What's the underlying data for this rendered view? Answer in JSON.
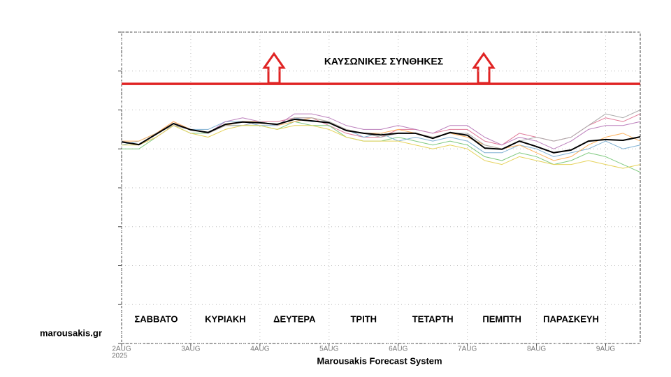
{
  "chart_data": {
    "type": "line",
    "footer": "Marousakis Forecast System",
    "brand": "marousakis.gr",
    "year_label": "2025",
    "xlim": [
      0,
      7.5
    ],
    "xticks": [
      {
        "value": 0,
        "label": "2AUG"
      },
      {
        "value": 1,
        "label": "3AUG"
      },
      {
        "value": 2,
        "label": "4AUG"
      },
      {
        "value": 3,
        "label": "5AUG"
      },
      {
        "value": 4,
        "label": "6AUG"
      },
      {
        "value": 5,
        "label": "7AUG"
      },
      {
        "value": 6,
        "label": "8AUG"
      },
      {
        "value": 7,
        "label": "9AUG"
      }
    ],
    "ylim": [
      0,
      8
    ],
    "yticks": [
      0,
      1,
      2,
      3,
      4,
      5,
      6,
      7,
      8
    ],
    "grid": true,
    "day_labels": [
      "ΣΑΒΒΑΤΟ",
      "ΚΥΡΙΑΚΗ",
      "ΔΕΥΤΕΡΑ",
      "ΤΡΙΤΗ",
      "ΤΕΤΑΡΤΗ",
      "ΠΕΜΠΤΗ",
      "ΠΑΡΑΣΚΕΥΗ"
    ],
    "threshold": {
      "value": 6.67,
      "label": "ΚΑΥΣΩΝΙΚΕΣ ΣΥΝΘΗΚΕΣ",
      "color": "#e02424"
    },
    "x": [
      0,
      0.25,
      0.5,
      0.75,
      1,
      1.25,
      1.5,
      1.75,
      2,
      2.25,
      2.5,
      2.75,
      3,
      3.25,
      3.5,
      3.75,
      4,
      4.25,
      4.5,
      4.75,
      5,
      5.25,
      5.5,
      5.75,
      6,
      6.25,
      6.5,
      6.75,
      7,
      7.25,
      7.5
    ],
    "members": [
      {
        "color": "#e07b9a",
        "values": [
          5.2,
          5.1,
          5.4,
          5.7,
          5.5,
          5.4,
          5.6,
          5.7,
          5.7,
          5.7,
          5.8,
          5.8,
          5.6,
          5.4,
          5.3,
          5.3,
          5.5,
          5.5,
          5.4,
          5.5,
          5.5,
          5.2,
          5.1,
          5.4,
          5.3,
          5.2,
          5.3,
          5.6,
          5.8,
          5.7,
          5.9
        ]
      },
      {
        "color": "#7fc97f",
        "values": [
          5.0,
          5.0,
          5.3,
          5.6,
          5.4,
          5.4,
          5.6,
          5.6,
          5.6,
          5.5,
          5.7,
          5.6,
          5.6,
          5.3,
          5.2,
          5.2,
          5.3,
          5.2,
          5.1,
          5.2,
          5.1,
          4.8,
          4.7,
          4.9,
          4.8,
          4.6,
          4.7,
          4.9,
          4.8,
          4.6,
          4.4
        ]
      },
      {
        "color": "#80b1d3",
        "values": [
          5.1,
          5.2,
          5.4,
          5.6,
          5.5,
          5.5,
          5.7,
          5.7,
          5.6,
          5.6,
          5.8,
          5.7,
          5.7,
          5.5,
          5.3,
          5.4,
          5.2,
          5.3,
          5.2,
          5.3,
          5.2,
          4.9,
          4.9,
          5.1,
          5.0,
          4.8,
          4.9,
          5.0,
          5.2,
          5.0,
          5.1
        ]
      },
      {
        "color": "#fdb462",
        "values": [
          5.2,
          5.2,
          5.4,
          5.7,
          5.5,
          5.4,
          5.6,
          5.7,
          5.7,
          5.6,
          5.7,
          5.8,
          5.7,
          5.5,
          5.4,
          5.4,
          5.5,
          5.4,
          5.3,
          5.4,
          5.3,
          5.1,
          5.0,
          5.1,
          4.9,
          4.7,
          4.8,
          5.1,
          5.3,
          5.4,
          5.2
        ]
      },
      {
        "color": "#bc80bd",
        "values": [
          5.2,
          5.1,
          5.3,
          5.6,
          5.5,
          5.4,
          5.7,
          5.8,
          5.7,
          5.6,
          5.9,
          5.9,
          5.8,
          5.6,
          5.5,
          5.5,
          5.6,
          5.5,
          5.4,
          5.6,
          5.6,
          5.3,
          5.1,
          5.3,
          5.2,
          5.0,
          5.2,
          5.5,
          5.6,
          5.6,
          5.7
        ]
      },
      {
        "color": "#aaaaaa",
        "values": [
          5.2,
          5.1,
          5.4,
          5.6,
          5.5,
          5.4,
          5.6,
          5.6,
          5.7,
          5.6,
          5.8,
          5.8,
          5.7,
          5.5,
          5.4,
          5.3,
          5.4,
          5.4,
          5.3,
          5.4,
          5.4,
          5.1,
          5.0,
          5.2,
          5.3,
          5.2,
          5.3,
          5.6,
          5.9,
          5.8,
          6.0
        ]
      },
      {
        "color": "#e6d35c",
        "values": [
          5.1,
          5.1,
          5.3,
          5.6,
          5.4,
          5.3,
          5.5,
          5.6,
          5.6,
          5.5,
          5.6,
          5.6,
          5.5,
          5.3,
          5.2,
          5.2,
          5.2,
          5.1,
          5.0,
          5.1,
          5.0,
          4.7,
          4.6,
          4.8,
          4.7,
          4.6,
          4.6,
          4.7,
          4.6,
          4.5,
          4.6
        ]
      }
    ],
    "mean": {
      "color": "#000000",
      "values": [
        5.18,
        5.11,
        5.38,
        5.65,
        5.49,
        5.42,
        5.63,
        5.69,
        5.67,
        5.63,
        5.76,
        5.72,
        5.67,
        5.47,
        5.4,
        5.36,
        5.4,
        5.4,
        5.27,
        5.42,
        5.35,
        5.02,
        4.99,
        5.2,
        5.06,
        4.9,
        4.97,
        5.2,
        5.24,
        5.22,
        5.31
      ]
    }
  }
}
